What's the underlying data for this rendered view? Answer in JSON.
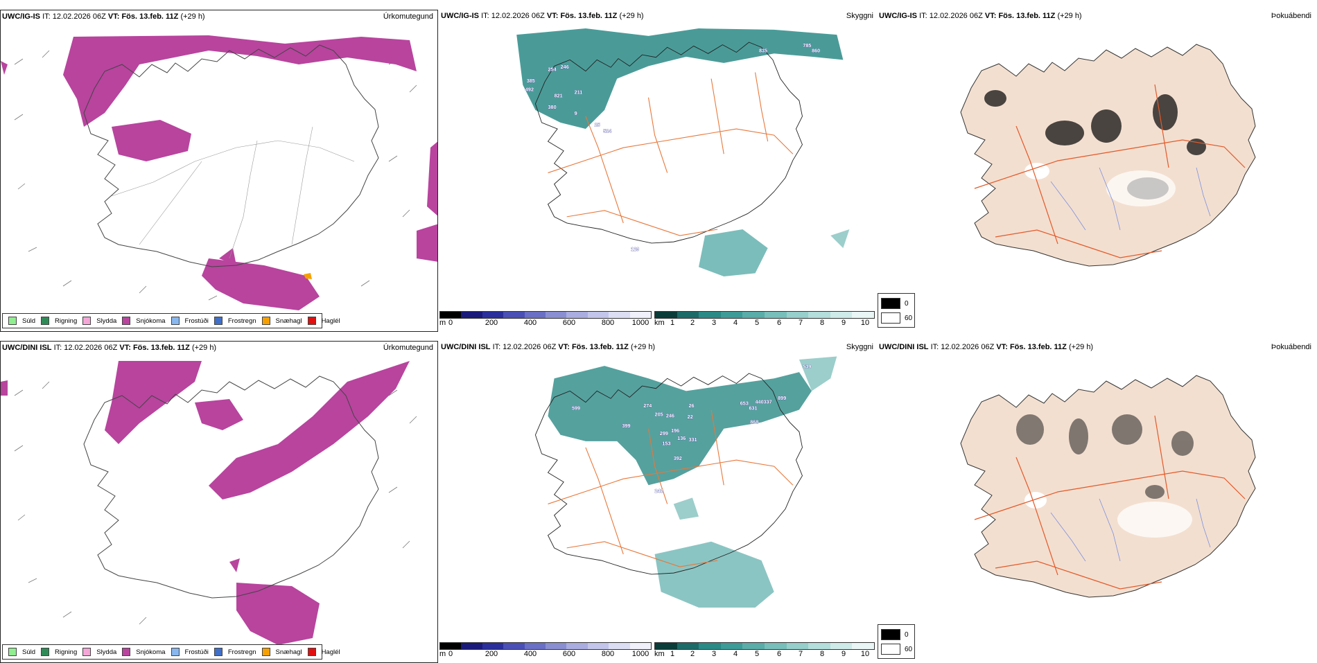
{
  "top_row": {
    "precip_panel": {
      "model": "UWC/IG-IS",
      "it_prefix": "IT:",
      "it_time": "12.02.2026 06Z",
      "vt_prefix": "VT:",
      "vt_time": "Fös. 13.feb. 11Z",
      "lead": "(+29 h)",
      "title": "Úrkomutegund"
    },
    "visibility_panel": {
      "model": "UWC/IG-IS",
      "it_prefix": "IT:",
      "it_time": "12.02.2026 06Z",
      "vt_prefix": "VT:",
      "vt_time": "Fös. 13.feb. 11Z",
      "lead": "(+29 h)",
      "title": "Skyggni",
      "labels": [
        "254",
        "246",
        "385",
        "492",
        "821",
        "211",
        "380",
        "9",
        "25",
        "524",
        "835",
        "785",
        "860",
        "129"
      ]
    },
    "fog_panel": {
      "model": "UWC/IG-IS",
      "it_prefix": "IT:",
      "it_time": "12.02.2026 06Z",
      "vt_prefix": "VT:",
      "vt_time": "Fös. 13.feb. 11Z",
      "lead": "(+29 h)",
      "title": "Þokuábendi"
    }
  },
  "bottom_row": {
    "precip_panel": {
      "model": "UWC/DINI ISL",
      "it_prefix": "IT:",
      "it_time": "12.02.2026 06Z",
      "vt_prefix": "VT:",
      "vt_time": "Fös. 13.feb. 11Z",
      "lead": "(+29 h)",
      "title": "Úrkomutegund"
    },
    "visibility_panel": {
      "model": "UWC/DINI ISL",
      "it_prefix": "IT:",
      "it_time": "12.02.2026 06Z",
      "vt_prefix": "VT:",
      "vt_time": "Fös. 13.feb. 11Z",
      "lead": "(+29 h)",
      "title": "Skyggni",
      "labels": [
        "599",
        "399",
        "274",
        "205",
        "246",
        "26",
        "22",
        "299",
        "196",
        "153",
        "136",
        "331",
        "392",
        "653",
        "631",
        "440337",
        "899",
        "868",
        "248",
        "539"
      ]
    },
    "fog_panel": {
      "model": "UWC/DINI ISL",
      "it_prefix": "IT:",
      "it_time": "12.02.2026 06Z",
      "vt_prefix": "VT:",
      "vt_time": "Fös. 13.feb. 11Z",
      "lead": "(+29 h)",
      "title": "Þokuábendi"
    }
  },
  "precip_legend": [
    {
      "label": "Súld",
      "color": "#90ee90"
    },
    {
      "label": "Rigning",
      "color": "#2e8b57"
    },
    {
      "label": "Slydda",
      "color": "#f4a6d7"
    },
    {
      "label": "Snjókoma",
      "color": "#b8449e"
    },
    {
      "label": "Frostúði",
      "color": "#87b7ee"
    },
    {
      "label": "Frostregn",
      "color": "#3f6fc9"
    },
    {
      "label": "Snæhagl",
      "color": "#f5a000"
    },
    {
      "label": "Haglél",
      "color": "#e01010"
    }
  ],
  "cloud_base_scale": {
    "unit": "m",
    "ticks": [
      "0",
      "200",
      "400",
      "600",
      "800",
      "1000"
    ],
    "colors": [
      "#000000",
      "#1a1a7a",
      "#2a2f9c",
      "#4a50b5",
      "#6a70c5",
      "#8a8fd2",
      "#a9ade0",
      "#c3c6ea",
      "#dcdef3",
      "#f0f1fa"
    ]
  },
  "visibility_scale": {
    "unit": "km",
    "ticks": [
      "1",
      "2",
      "3",
      "4",
      "5",
      "6",
      "7",
      "8",
      "9",
      "10"
    ],
    "colors": [
      "#0a3d3a",
      "#1d6b68",
      "#2a8a86",
      "#3e9c98",
      "#5aada9",
      "#78bfbb",
      "#96cfcb",
      "#b3dedb",
      "#cfebe9",
      "#e9f6f5"
    ]
  },
  "fog_legend": {
    "high_label": "0",
    "low_label": "60",
    "high_color": "#000000",
    "low_color": "#ffffff"
  },
  "colors": {
    "snow": "#b8449e",
    "sleet_hail": "#f5a000",
    "teal": "#2a8a86",
    "land_fog": "#f3dfd0",
    "roads": "#e8773a",
    "rivers": "#7a90e0"
  }
}
